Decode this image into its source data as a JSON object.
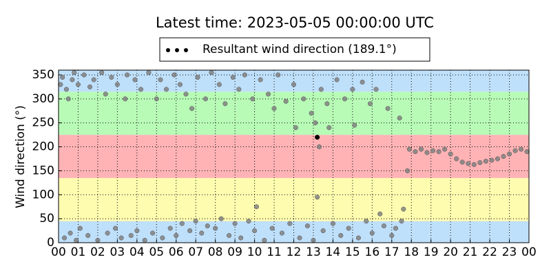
{
  "chart_data": {
    "type": "scatter",
    "title": "Latest time: 2023-05-05 00:00:00 UTC",
    "y_label": "Wind direction (°)",
    "xlim": [
      0,
      24
    ],
    "ylim": [
      0,
      360
    ],
    "xticks": [
      {
        "value": 0,
        "label": "00"
      },
      {
        "value": 1,
        "label": "01"
      },
      {
        "value": 2,
        "label": "02"
      },
      {
        "value": 3,
        "label": "03"
      },
      {
        "value": 4,
        "label": "04"
      },
      {
        "value": 5,
        "label": "05"
      },
      {
        "value": 6,
        "label": "06"
      },
      {
        "value": 7,
        "label": "07"
      },
      {
        "value": 8,
        "label": "08"
      },
      {
        "value": 9,
        "label": "09"
      },
      10,
      11,
      12,
      13,
      14,
      15,
      16,
      17,
      18,
      19,
      20,
      21,
      22,
      23,
      {
        "value": 24,
        "label": "00"
      }
    ],
    "yticks": [
      0,
      50,
      100,
      150,
      200,
      250,
      300,
      350
    ],
    "grid": true,
    "bands": [
      {
        "from": 0,
        "to": 45,
        "color": "#bfe0fb"
      },
      {
        "from": 45,
        "to": 135,
        "color": "#fefcaf"
      },
      {
        "from": 135,
        "to": 225,
        "color": "#ffb3b5"
      },
      {
        "from": 225,
        "to": 315,
        "color": "#b8fbb7"
      },
      {
        "from": 315,
        "to": 360,
        "color": "#bfe0fb"
      }
    ],
    "legend_position": "top",
    "series": [
      {
        "name": "Resultant wind direction (189.1°)",
        "color": "#000000",
        "point_color": "#808080",
        "x": [
          0.1,
          0.2,
          0.3,
          0.4,
          0.5,
          0.6,
          0.7,
          0.8,
          0.9,
          1.0,
          1.1,
          1.3,
          1.5,
          1.6,
          1.8,
          2.0,
          2.2,
          2.4,
          2.5,
          2.7,
          2.9,
          3.0,
          3.2,
          3.4,
          3.5,
          3.7,
          3.9,
          4.0,
          4.2,
          4.4,
          4.6,
          4.8,
          5.0,
          5.2,
          5.3,
          5.5,
          5.7,
          5.9,
          6.0,
          6.2,
          6.3,
          6.5,
          6.7,
          6.8,
          7.0,
          7.1,
          7.3,
          7.5,
          7.6,
          7.8,
          8.0,
          8.2,
          8.3,
          8.5,
          8.7,
          8.9,
          9.0,
          9.2,
          9.3,
          9.5,
          9.7,
          9.9,
          10.0,
          10.1,
          10.3,
          10.5,
          10.7,
          10.9,
          11.0,
          11.2,
          11.4,
          11.6,
          11.8,
          12.0,
          12.1,
          12.3,
          12.5,
          12.7,
          12.9,
          13.0,
          13.1,
          13.2,
          13.3,
          13.4,
          13.5,
          13.7,
          13.8,
          14.0,
          14.2,
          14.4,
          14.6,
          14.8,
          15.0,
          15.1,
          15.3,
          15.5,
          15.7,
          15.9,
          16.0,
          16.2,
          16.4,
          16.6,
          16.8,
          17.0,
          17.2,
          17.4,
          17.5,
          17.6,
          17.8,
          17.9,
          18.2,
          18.5,
          18.8,
          19.1,
          19.4,
          19.7,
          20.0,
          20.3,
          20.6,
          20.9,
          21.2,
          21.5,
          21.8,
          22.1,
          22.4,
          22.7,
          23.0,
          23.3,
          23.6,
          23.9,
          13.2
        ],
        "values": [
          330,
          345,
          10,
          320,
          300,
          20,
          340,
          355,
          5,
          330,
          30,
          350,
          15,
          325,
          340,
          5,
          355,
          310,
          20,
          345,
          30,
          330,
          10,
          300,
          350,
          15,
          340,
          25,
          320,
          5,
          355,
          20,
          300,
          340,
          10,
          320,
          30,
          350,
          15,
          330,
          40,
          310,
          25,
          280,
          45,
          345,
          20,
          300,
          35,
          355,
          30,
          330,
          50,
          290,
          15,
          345,
          40,
          320,
          10,
          350,
          45,
          300,
          25,
          75,
          340,
          5,
          310,
          30,
          280,
          350,
          20,
          295,
          40,
          330,
          240,
          10,
          300,
          35,
          270,
          5,
          250,
          95,
          200,
          320,
          25,
          290,
          240,
          40,
          340,
          15,
          300,
          30,
          320,
          245,
          10,
          335,
          45,
          290,
          20,
          320,
          60,
          35,
          280,
          15,
          30,
          260,
          45,
          70,
          150,
          195,
          190,
          195,
          188,
          192,
          190,
          195,
          185,
          175,
          168,
          165,
          163,
          167,
          170,
          172,
          175,
          180,
          185,
          192,
          195,
          190,
          220
        ]
      }
    ]
  }
}
